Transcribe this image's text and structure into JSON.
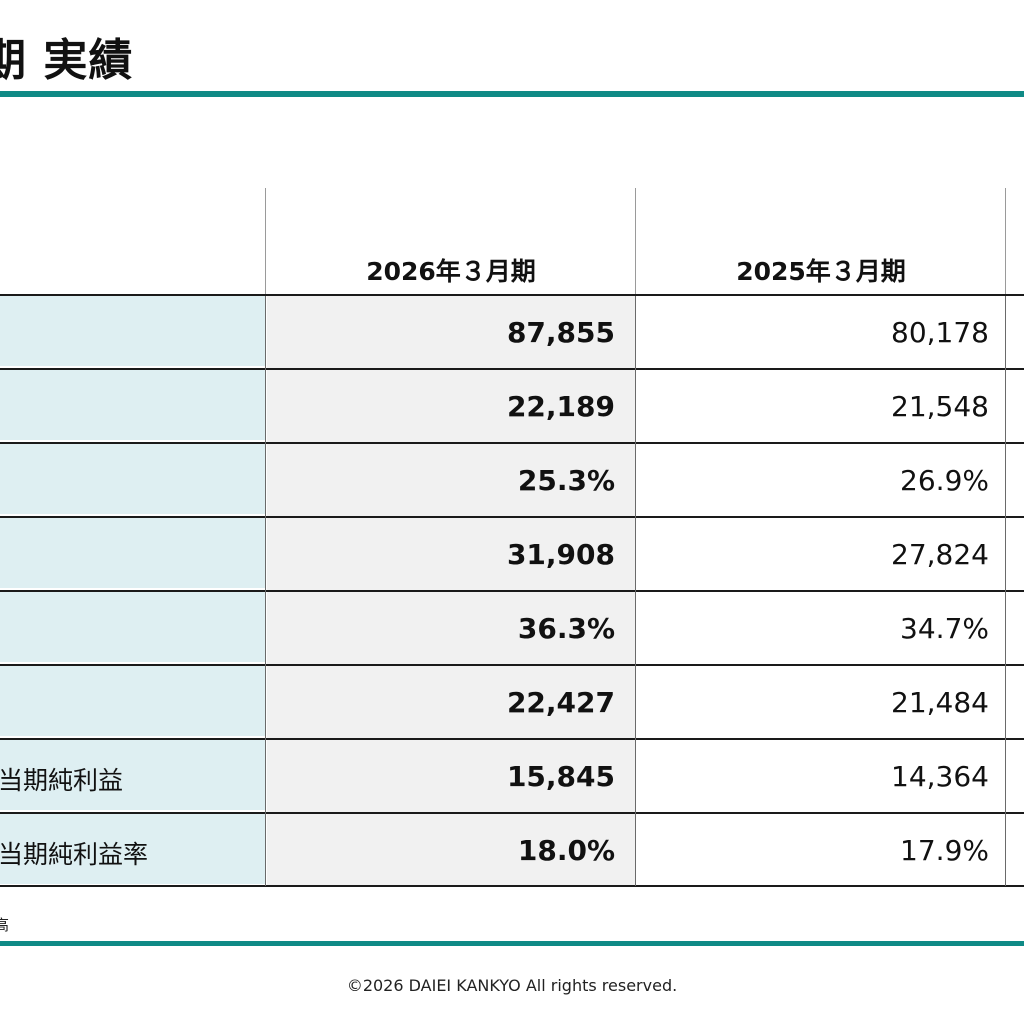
{
  "header": {
    "title": "期 実績"
  },
  "table": {
    "columns": [
      "2026年３月期",
      "2025年３月期"
    ],
    "rows": [
      {
        "label": "",
        "current": "87,855",
        "previous": "80,178"
      },
      {
        "label": "",
        "current": "22,189",
        "previous": "21,548"
      },
      {
        "label": "",
        "current": "25.3%",
        "previous": "26.9%"
      },
      {
        "label": "",
        "current": "31,908",
        "previous": "27,824"
      },
      {
        "label": "",
        "current": "36.3%",
        "previous": "34.7%"
      },
      {
        "label": "",
        "current": "22,427",
        "previous": "21,484"
      },
      {
        "label": "当期純利益",
        "current": "15,845",
        "previous": "14,364"
      },
      {
        "label": "当期純利益率",
        "current": "18.0%",
        "previous": "17.9%"
      }
    ]
  },
  "note": "高",
  "footer": {
    "copyright": "©2026 DAIEI KANKYO All rights reserved."
  },
  "colors": {
    "accent_rule": "#0f8a86",
    "label_fill": "#deeff2",
    "current_fill": "#f1f1f1"
  }
}
